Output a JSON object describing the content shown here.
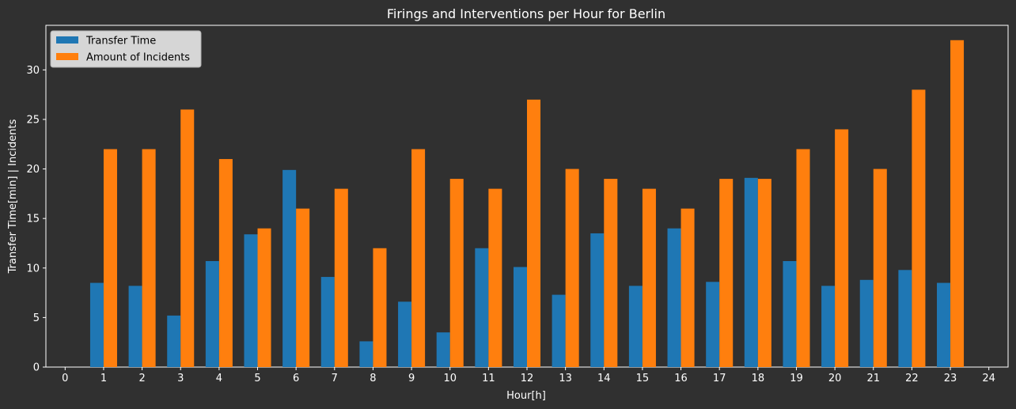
{
  "chart_data": {
    "type": "bar",
    "title": "Firings and Interventions per Hour for Berlin",
    "xlabel": "Hour[h]",
    "ylabel": "Transfer Time[min] | Incidents",
    "xlim": [
      -0.5,
      24.5
    ],
    "ylim": [
      0,
      34.5
    ],
    "x_ticks": [
      "0",
      "1",
      "2",
      "3",
      "4",
      "5",
      "6",
      "7",
      "8",
      "9",
      "10",
      "11",
      "12",
      "13",
      "14",
      "15",
      "16",
      "17",
      "18",
      "19",
      "20",
      "21",
      "22",
      "23",
      "24"
    ],
    "y_ticks": [
      "0",
      "5",
      "10",
      "15",
      "20",
      "25",
      "30"
    ],
    "grid": false,
    "legend_position": "top-left",
    "categories": [
      1,
      2,
      3,
      4,
      5,
      6,
      7,
      8,
      9,
      10,
      11,
      12,
      13,
      14,
      15,
      16,
      17,
      18,
      19,
      20,
      21,
      22,
      23
    ],
    "series": [
      {
        "name": "Transfer Time",
        "color": "#1f77b4",
        "values": [
          8.5,
          8.2,
          5.2,
          10.7,
          13.4,
          19.9,
          9.1,
          2.6,
          6.6,
          3.5,
          12.0,
          10.1,
          7.3,
          13.5,
          8.2,
          14.0,
          8.6,
          19.1,
          10.7,
          8.2,
          8.8,
          9.8,
          8.5
        ]
      },
      {
        "name": "Amount of Incidents",
        "color": "#ff7f0e",
        "values": [
          22,
          22,
          26,
          21,
          14,
          16,
          18,
          12,
          22,
          19,
          18,
          27,
          20,
          19,
          18,
          16,
          19,
          19,
          22,
          24,
          20,
          28,
          33
        ]
      }
    ]
  }
}
